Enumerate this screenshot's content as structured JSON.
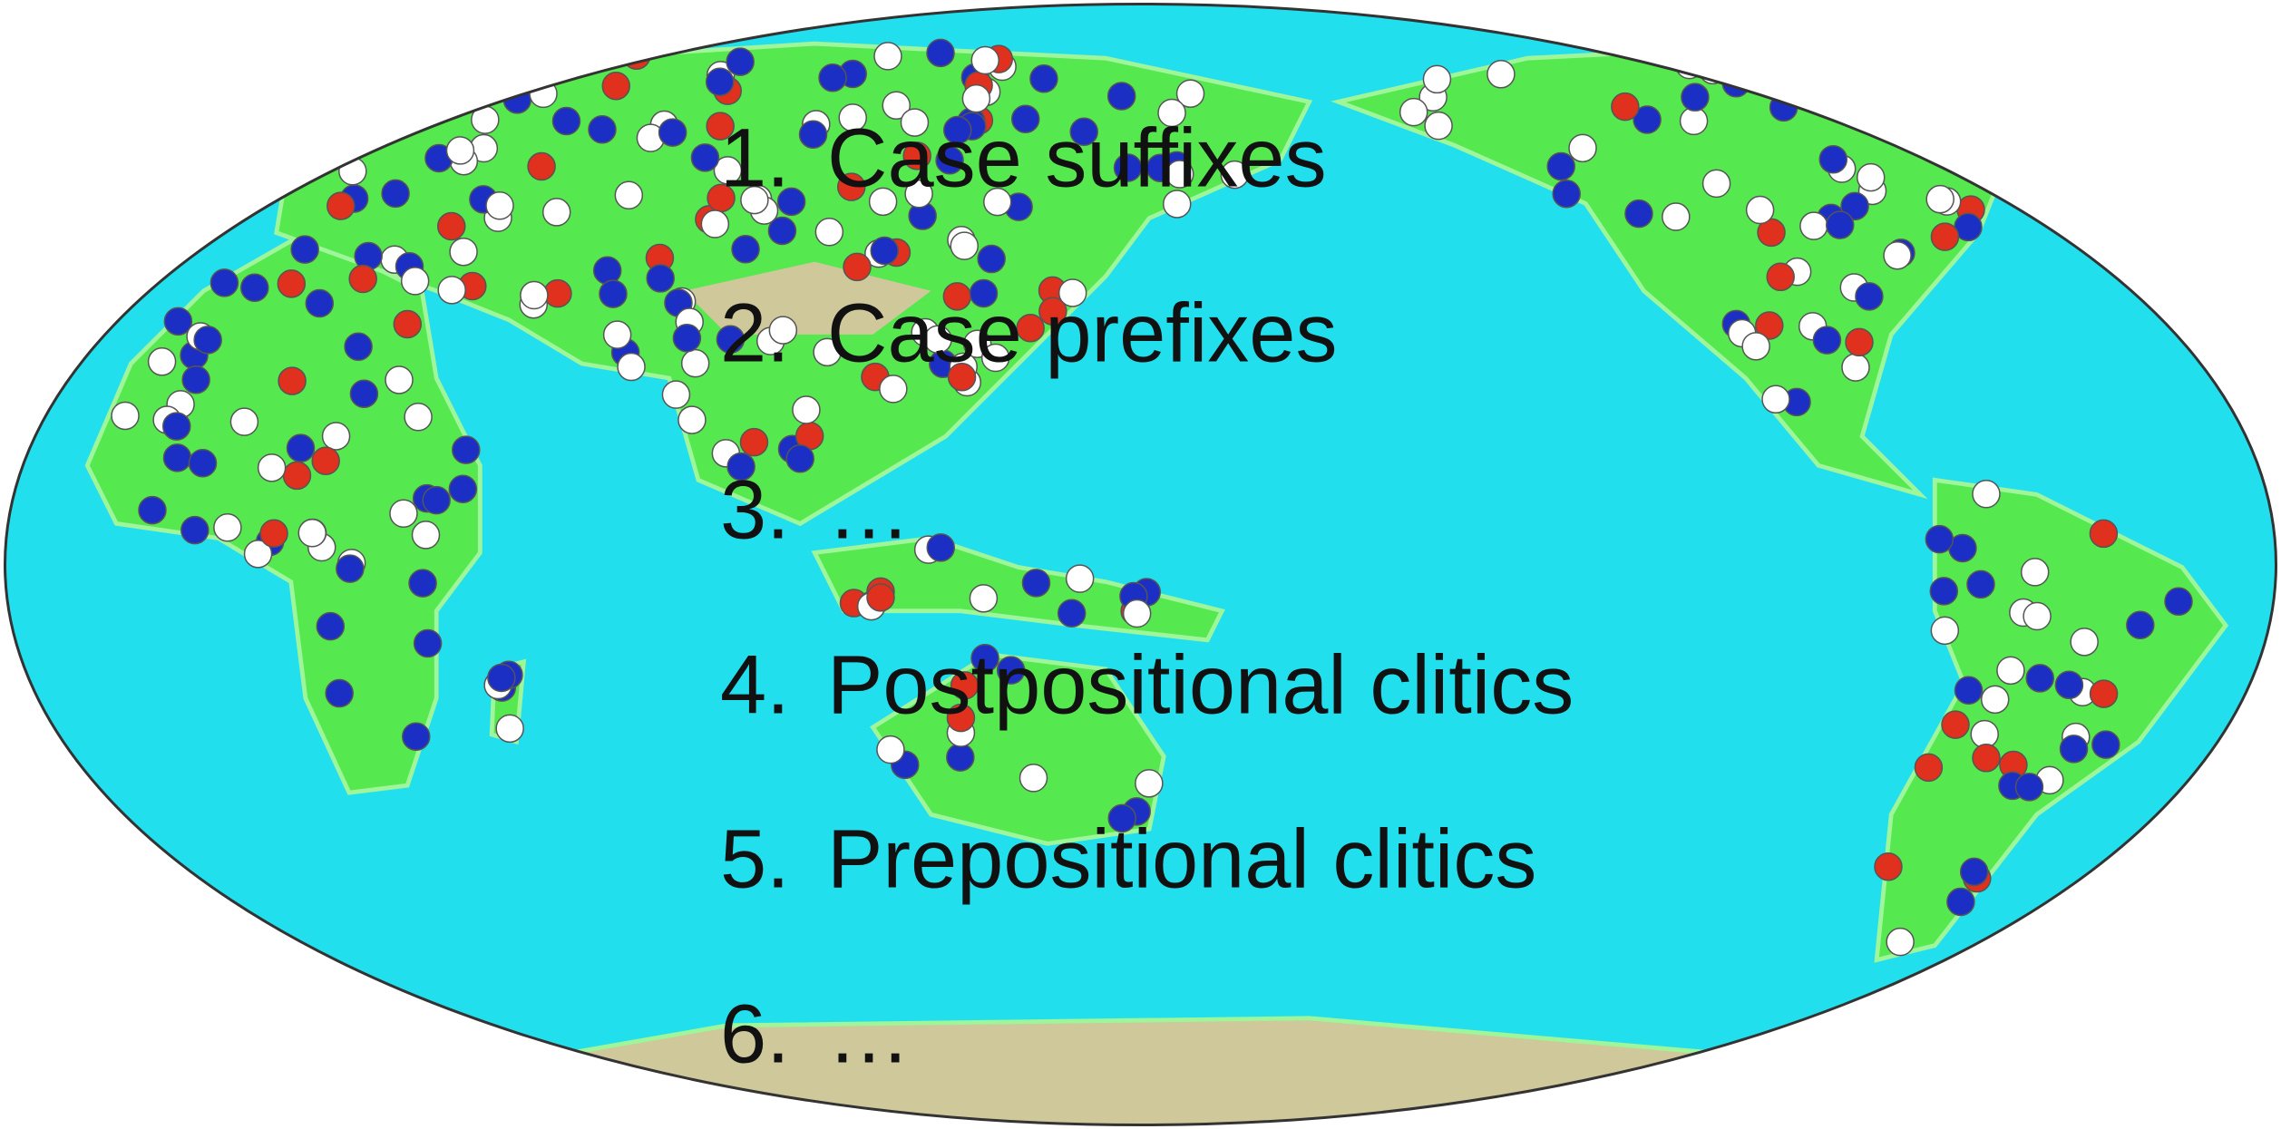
{
  "list": {
    "items": [
      {
        "marker": "1.",
        "text": "Case suffixes"
      },
      {
        "marker": "2.",
        "text": "Case prefixes"
      },
      {
        "marker": "3.",
        "text": "…"
      },
      {
        "marker": "4.",
        "text": "Postpositional clitics"
      },
      {
        "marker": "5.",
        "text": "Prepositional clitics"
      },
      {
        "marker": "6.",
        "text": "…"
      }
    ]
  }
}
